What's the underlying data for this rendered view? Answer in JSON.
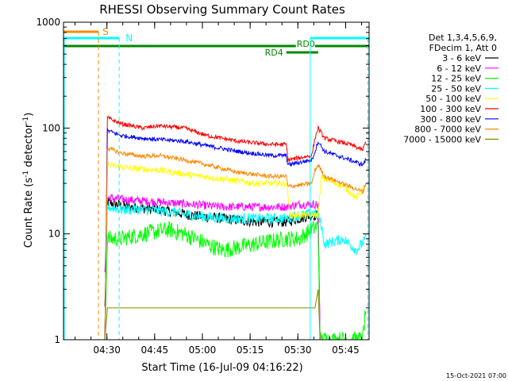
{
  "chart_data": {
    "type": "line",
    "title": "RHESSI Observing Summary Count Rates",
    "xlabel": "Start Time (16-Jul-09 04:16:22)",
    "ylabel_main": "Count Rate (s",
    "ylabel_sup1": "-1",
    "ylabel_mid": " detector",
    "ylabel_sup2": "-1",
    "ylabel_end": ")",
    "yscale": "log",
    "ylim": [
      1,
      1000
    ],
    "xlim_minutes": [
      0,
      96
    ],
    "yticks": [
      {
        "value": 1,
        "label": "1"
      },
      {
        "value": 10,
        "label": "10"
      },
      {
        "value": 100,
        "label": "100"
      },
      {
        "value": 1000,
        "label": "1000"
      }
    ],
    "xticks": [
      {
        "minute": 13.63,
        "label": "04:30"
      },
      {
        "minute": 28.63,
        "label": "04:45"
      },
      {
        "minute": 43.63,
        "label": "05:00"
      },
      {
        "minute": 58.63,
        "label": "05:15"
      },
      {
        "minute": 73.63,
        "label": "05:30"
      },
      {
        "minute": 88.63,
        "label": "05:45"
      }
    ],
    "legend_header": [
      "Det 1,3,4,5,6,9,",
      "FDecim 1, Att 0"
    ],
    "series": [
      {
        "name": "3 - 6 keV",
        "color": "#000000",
        "points": [
          [
            13,
            2
          ],
          [
            13.8,
            20
          ],
          [
            20,
            18
          ],
          [
            30,
            17
          ],
          [
            40,
            15
          ],
          [
            50,
            14
          ],
          [
            60,
            13
          ],
          [
            70,
            13
          ],
          [
            74,
            14
          ],
          [
            78,
            15
          ],
          [
            80,
            15
          ],
          [
            80.6,
            1
          ]
        ],
        "noise": 0.05
      },
      {
        "name": "6 - 12 keV",
        "color": "#ff00ff",
        "points": [
          [
            13,
            4
          ],
          [
            13.8,
            22
          ],
          [
            20,
            21
          ],
          [
            30,
            20
          ],
          [
            40,
            19
          ],
          [
            50,
            18
          ],
          [
            60,
            18
          ],
          [
            70,
            18
          ],
          [
            74,
            19
          ],
          [
            78,
            19
          ],
          [
            80,
            19
          ],
          [
            80.6,
            1
          ]
        ],
        "noise": 0.04
      },
      {
        "name": "12 - 25 keV",
        "color": "#00ff00",
        "points": [
          [
            13,
            1
          ],
          [
            13.8,
            9
          ],
          [
            18,
            9
          ],
          [
            25,
            10
          ],
          [
            33,
            11
          ],
          [
            38,
            10
          ],
          [
            45,
            8
          ],
          [
            50,
            7
          ],
          [
            60,
            8
          ],
          [
            70,
            9
          ],
          [
            74,
            9
          ],
          [
            78,
            11
          ],
          [
            80,
            12
          ],
          [
            80.6,
            1
          ],
          [
            94,
            1
          ],
          [
            95,
            2
          ]
        ],
        "noise": 0.08
      },
      {
        "name": "25 - 50 keV",
        "color": "#00ffff",
        "points": [
          [
            13,
            1
          ],
          [
            13.8,
            18
          ],
          [
            18,
            17
          ],
          [
            25,
            17
          ],
          [
            35,
            16
          ],
          [
            40,
            15
          ],
          [
            50,
            14
          ],
          [
            60,
            14
          ],
          [
            70,
            14
          ],
          [
            74,
            15
          ],
          [
            76,
            15
          ],
          [
            78,
            16
          ],
          [
            80,
            15
          ],
          [
            81,
            12
          ],
          [
            82,
            8
          ],
          [
            88,
            9
          ],
          [
            92,
            7
          ],
          [
            95,
            9
          ]
        ],
        "noise": 0.05
      },
      {
        "name": "50 - 100 keV",
        "color": "#ffff00",
        "points": [
          [
            13,
            1
          ],
          [
            13.8,
            45
          ],
          [
            20,
            42
          ],
          [
            30,
            40
          ],
          [
            40,
            36
          ],
          [
            50,
            33
          ],
          [
            60,
            30
          ],
          [
            70,
            30
          ],
          [
            70.5,
            25
          ],
          [
            71,
            15
          ],
          [
            76,
            15
          ],
          [
            80,
            15
          ],
          [
            81,
            34
          ],
          [
            88,
            28
          ],
          [
            92,
            22
          ],
          [
            95,
            28
          ]
        ],
        "noise": 0.03
      },
      {
        "name": "100 - 300 keV",
        "color": "#ff0000",
        "points": [
          [
            13,
            1
          ],
          [
            13.8,
            125
          ],
          [
            18,
            110
          ],
          [
            25,
            100
          ],
          [
            30,
            105
          ],
          [
            38,
            100
          ],
          [
            45,
            85
          ],
          [
            55,
            75
          ],
          [
            65,
            70
          ],
          [
            70,
            70
          ],
          [
            70.5,
            50
          ],
          [
            78,
            55
          ],
          [
            79,
            80
          ],
          [
            80,
            100
          ],
          [
            82,
            80
          ],
          [
            90,
            70
          ],
          [
            94,
            62
          ],
          [
            95,
            75
          ]
        ],
        "noise": 0.02
      },
      {
        "name": "300 - 800 keV",
        "color": "#0000ff",
        "points": [
          [
            13,
            1
          ],
          [
            13.8,
            95
          ],
          [
            18,
            85
          ],
          [
            25,
            80
          ],
          [
            30,
            78
          ],
          [
            38,
            75
          ],
          [
            45,
            68
          ],
          [
            55,
            60
          ],
          [
            65,
            55
          ],
          [
            70,
            55
          ],
          [
            70.5,
            45
          ],
          [
            78,
            50
          ],
          [
            79,
            60
          ],
          [
            80,
            75
          ],
          [
            82,
            60
          ],
          [
            90,
            50
          ],
          [
            94,
            45
          ],
          [
            95,
            50
          ]
        ],
        "noise": 0.02
      },
      {
        "name": "800 - 7000 keV",
        "color": "#ff8800",
        "points": [
          [
            13,
            1
          ],
          [
            13.8,
            65
          ],
          [
            18,
            58
          ],
          [
            25,
            54
          ],
          [
            30,
            55
          ],
          [
            38,
            50
          ],
          [
            45,
            45
          ],
          [
            55,
            38
          ],
          [
            65,
            35
          ],
          [
            70,
            35
          ],
          [
            70.5,
            28
          ],
          [
            78,
            30
          ],
          [
            79,
            40
          ],
          [
            80,
            45
          ],
          [
            82,
            35
          ],
          [
            90,
            28
          ],
          [
            94,
            25
          ],
          [
            95,
            30
          ]
        ],
        "noise": 0.02
      },
      {
        "name": "7000 - 15000 keV",
        "color": "#888800",
        "points": [
          [
            13,
            1
          ],
          [
            13.8,
            2
          ],
          [
            79,
            2
          ],
          [
            80,
            3
          ],
          [
            80.6,
            1
          ],
          [
            95,
            1
          ]
        ],
        "noise": 0.0
      }
    ],
    "annotations": {
      "s_label": "S",
      "n_label": "N",
      "rd0_label": "RD0",
      "rd4_label": "RD4",
      "s_color": "#ff8800",
      "n_color": "#00ffff",
      "rd_color": "#008800"
    }
  },
  "footer": {
    "timestamp": "15-Oct-2021 07:00"
  }
}
